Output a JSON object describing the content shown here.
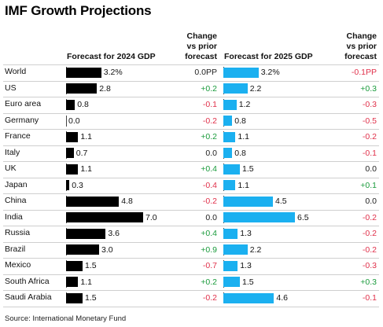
{
  "chart_data": {
    "type": "bar",
    "title": "IMF Growth Projections",
    "headers": {
      "forecast_2024": "Forecast for 2024 GDP",
      "change_2024": [
        "Change",
        "vs prior",
        "forecast"
      ],
      "forecast_2025": "Forecast for 2025 GDP",
      "change_2025": [
        "Change",
        "vs prior",
        "forecast"
      ]
    },
    "categories": [
      "World",
      "US",
      "Euro area",
      "Germany",
      "France",
      "Italy",
      "UK",
      "Japan",
      "China",
      "India",
      "Russia",
      "Brazil",
      "Mexico",
      "South Africa",
      "Saudi Arabia"
    ],
    "series": [
      {
        "name": "Forecast for 2024 GDP",
        "values": [
          3.2,
          2.8,
          0.8,
          0.0,
          1.1,
          0.7,
          1.1,
          0.3,
          4.8,
          7.0,
          3.6,
          3.0,
          1.5,
          1.1,
          1.5
        ],
        "labels": [
          "3.2%",
          "2.8",
          "0.8",
          "0.0",
          "1.1",
          "0.7",
          "1.1",
          "0.3",
          "4.8",
          "7.0",
          "3.6",
          "3.0",
          "1.5",
          "1.1",
          "1.5"
        ]
      },
      {
        "name": "Forecast for 2025 GDP",
        "values": [
          3.2,
          2.2,
          1.2,
          0.8,
          1.1,
          0.8,
          1.5,
          1.1,
          4.5,
          6.5,
          1.3,
          2.2,
          1.3,
          1.5,
          4.6
        ],
        "labels": [
          "3.2%",
          "2.2",
          "1.2",
          "0.8",
          "1.1",
          "0.8",
          "1.5",
          "1.1",
          "4.5",
          "6.5",
          "1.3",
          "2.2",
          "1.3",
          "1.5",
          "4.6"
        ]
      }
    ],
    "change_2024": [
      "0.0PP",
      "+0.2",
      "-0.1",
      "-0.2",
      "+0.2",
      "0.0",
      "+0.4",
      "-0.4",
      "-0.2",
      "0.0",
      "+0.4",
      "+0.9",
      "-0.7",
      "+0.2",
      "-0.2"
    ],
    "change_2025": [
      "-0.1PP",
      "+0.3",
      "-0.3",
      "-0.5",
      "-0.2",
      "-0.1",
      "0.0",
      "+0.1",
      "0.0",
      "-0.2",
      "-0.2",
      "-0.2",
      "-0.3",
      "+0.3",
      "-0.1"
    ],
    "source": "Source: International Monetary Fund",
    "colors": {
      "bar_2024": "#000000",
      "bar_2025": "#1bb0f0",
      "positive": "#1a9b3c",
      "negative": "#e0304a",
      "neutral": "#222222"
    }
  }
}
